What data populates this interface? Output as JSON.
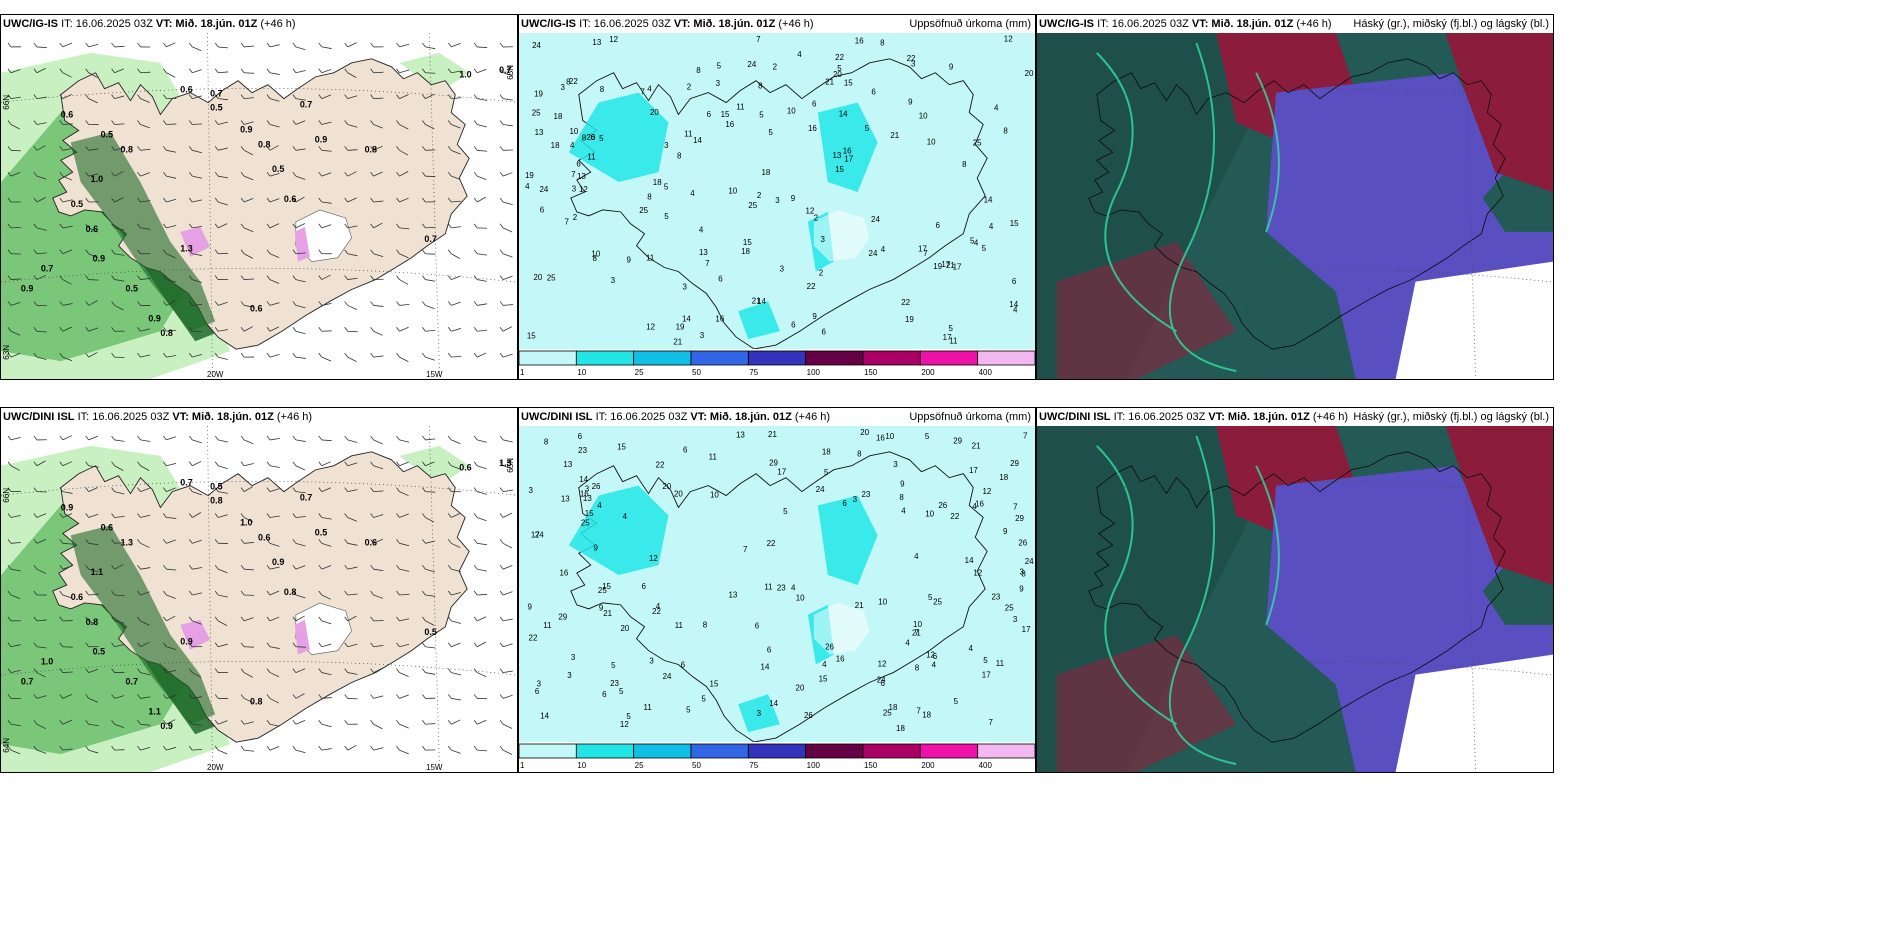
{
  "panels": [
    {
      "id": "p1",
      "model": "UWC/IG-IS",
      "it_label": "IT: 16.06.2025 03Z",
      "vt_label": "VT: Mið. 18.jún. 01Z",
      "lead": "(+46 h)",
      "right_title": "",
      "type": "precip-rate",
      "lat_label": "66N",
      "lat_label_right": "65N",
      "lat_label_low": "63N",
      "lon_labels": [
        "20W",
        "15W"
      ],
      "values": [
        "0.6",
        "0.7",
        "0.5",
        "0.6",
        "0.5",
        "0.8",
        "0.9",
        "0.8",
        "0.7",
        "0.9",
        "1.0",
        "1.3",
        "0.6",
        "0.5",
        "0.9",
        "0.7",
        "0.9",
        "0.8",
        "0.5",
        "0.6",
        "0.7",
        "1.0",
        "0.7",
        "0.5",
        "0.9",
        "0.8",
        "0.6"
      ],
      "colors": {
        "land": "#efe2d2",
        "light": "#c8f0c0",
        "mid": "#7ac77a",
        "dark": "#1f6b2a",
        "snow": "#e6a0e6"
      }
    },
    {
      "id": "p2",
      "model": "UWC/IG-IS",
      "it_label": "IT: 16.06.2025 03Z",
      "vt_label": "VT: Mið. 18.jún. 01Z",
      "lead": "(+46 h)",
      "right_title": "Uppsöfnuð úrkoma (mm)",
      "type": "accum",
      "numbers": [
        "8",
        "6",
        "3",
        "2",
        "4",
        "7",
        "5",
        "10",
        "15",
        "14",
        "12",
        "11",
        "17",
        "9",
        "13",
        "22",
        "16",
        "19",
        "21",
        "24",
        "25",
        "20",
        "18",
        "3",
        "6",
        "4",
        "8",
        "5"
      ],
      "colorbar": {
        "ticks": [
          "1",
          "10",
          "25",
          "50",
          "75",
          "100",
          "150",
          "200",
          "400"
        ],
        "colors": [
          "#c4f7f7",
          "#22e6e6",
          "#11bfe6",
          "#3366e6",
          "#3333bb",
          "#660044",
          "#aa0066",
          "#ee11aa",
          "#f2b8f2"
        ]
      }
    },
    {
      "id": "p3",
      "model": "UWC/IG-IS",
      "it_label": "IT: 16.06.2025 03Z",
      "vt_label": "VT: Mið. 18.jún. 01Z",
      "lead": "(+46 h)",
      "right_title": "Háský (gr.), miðský (fj.bl.) og lágský (bl.)",
      "type": "clouds"
    },
    {
      "id": "p4",
      "model": "UWC/DINI ISL",
      "it_label": "IT: 16.06.2025 03Z",
      "vt_label": "VT: Mið. 18.jún. 01Z",
      "lead": "(+46 h)",
      "right_title": "",
      "type": "precip-rate",
      "lat_label": "66N",
      "lat_label_right": "65N",
      "lat_label_low": "64N",
      "lon_labels": [
        "20W",
        "15W"
      ],
      "values": [
        "0.7",
        "0.5",
        "0.8",
        "0.9",
        "0.6",
        "1.3",
        "1.0",
        "0.6",
        "0.7",
        "0.5",
        "1.1",
        "0.9",
        "0.8",
        "0.6",
        "0.5",
        "1.0",
        "0.7",
        "0.6",
        "0.9",
        "0.8",
        "0.5",
        "0.6",
        "1.3",
        "0.7",
        "1.1",
        "0.9",
        "0.8"
      ],
      "colors": {
        "land": "#efe2d2",
        "light": "#c8f0c0",
        "mid": "#7ac77a",
        "dark": "#1f6b2a",
        "snow": "#e6a0e6"
      }
    },
    {
      "id": "p5",
      "model": "UWC/DINI ISL",
      "it_label": "IT: 16.06.2025 03Z",
      "vt_label": "VT: Mið. 18.jún. 01Z",
      "lead": "(+46 h)",
      "right_title": "Uppsöfnuð úrkoma (mm)",
      "type": "accum",
      "numbers": [
        "5",
        "4",
        "6",
        "7",
        "3",
        "8",
        "9",
        "10",
        "12",
        "11",
        "13",
        "15",
        "17",
        "16",
        "21",
        "23",
        "26",
        "18",
        "20",
        "22",
        "24",
        "25",
        "29",
        "14",
        "3",
        "6",
        "5",
        "4"
      ],
      "colorbar": {
        "ticks": [
          "1",
          "10",
          "25",
          "50",
          "75",
          "100",
          "150",
          "200",
          "400"
        ],
        "colors": [
          "#c4f7f7",
          "#22e6e6",
          "#11bfe6",
          "#3366e6",
          "#3333bb",
          "#660044",
          "#aa0066",
          "#ee11aa",
          "#f2b8f2"
        ]
      }
    },
    {
      "id": "p6",
      "model": "UWC/DINI ISL",
      "it_label": "IT: 16.06.2025 03Z",
      "vt_label": "VT: Mið. 18.jún. 01Z",
      "lead": "(+46 h)",
      "right_title": "Háský (gr.), miðský (fj.bl.) og lágský (bl.)",
      "type": "clouds"
    }
  ]
}
